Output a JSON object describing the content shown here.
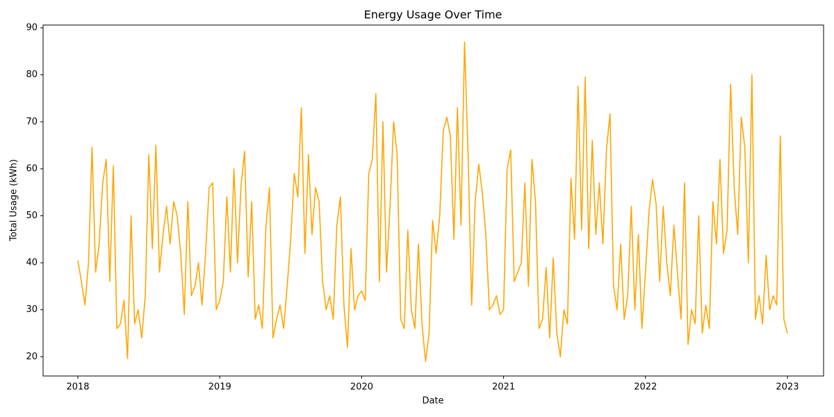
{
  "chart_data": {
    "type": "line",
    "title": "Energy Usage Over Time",
    "x_label": "Date",
    "y_label": "Total Usage (kWh)",
    "x": [
      2018,
      2018.025,
      2018.05,
      2018.075,
      2018.1,
      2018.125,
      2018.15,
      2018.175,
      2018.2,
      2018.225,
      2018.25,
      2018.275,
      2018.3,
      2018.325,
      2018.35,
      2018.375,
      2018.4,
      2018.425,
      2018.45,
      2018.475,
      2018.5,
      2018.525,
      2018.55,
      2018.575,
      2018.6,
      2018.625,
      2018.65,
      2018.675,
      2018.7,
      2018.725,
      2018.75,
      2018.775,
      2018.8,
      2018.825,
      2018.85,
      2018.875,
      2018.9,
      2018.925,
      2018.95,
      2018.975,
      2019,
      2019.025,
      2019.05,
      2019.075,
      2019.1,
      2019.125,
      2019.15,
      2019.175,
      2019.2,
      2019.225,
      2019.25,
      2019.275,
      2019.3,
      2019.325,
      2019.35,
      2019.375,
      2019.4,
      2019.425,
      2019.45,
      2019.475,
      2019.5,
      2019.525,
      2019.55,
      2019.575,
      2019.6,
      2019.625,
      2019.65,
      2019.675,
      2019.7,
      2019.725,
      2019.75,
      2019.775,
      2019.8,
      2019.825,
      2019.85,
      2019.875,
      2019.9,
      2019.925,
      2019.95,
      2019.975,
      2020,
      2020.025,
      2020.05,
      2020.075,
      2020.1,
      2020.125,
      2020.15,
      2020.175,
      2020.2,
      2020.225,
      2020.25,
      2020.275,
      2020.3,
      2020.325,
      2020.35,
      2020.375,
      2020.4,
      2020.425,
      2020.45,
      2020.475,
      2020.5,
      2020.525,
      2020.55,
      2020.575,
      2020.6,
      2020.625,
      2020.65,
      2020.675,
      2020.7,
      2020.725,
      2020.75,
      2020.775,
      2020.8,
      2020.825,
      2020.85,
      2020.875,
      2020.9,
      2020.925,
      2020.95,
      2020.975,
      2021,
      2021.025,
      2021.05,
      2021.075,
      2021.1,
      2021.125,
      2021.15,
      2021.175,
      2021.2,
      2021.225,
      2021.25,
      2021.275,
      2021.3,
      2021.325,
      2021.35,
      2021.375,
      2021.4,
      2021.425,
      2021.45,
      2021.475,
      2021.5,
      2021.525,
      2021.55,
      2021.575,
      2021.6,
      2021.625,
      2021.65,
      2021.675,
      2021.7,
      2021.725,
      2021.75,
      2021.775,
      2021.8,
      2021.825,
      2021.85,
      2021.875,
      2021.9,
      2021.925,
      2021.95,
      2021.975,
      2022,
      2022.025,
      2022.05,
      2022.075,
      2022.1,
      2022.125,
      2022.15,
      2022.175,
      2022.2,
      2022.225,
      2022.25,
      2022.275,
      2022.3,
      2022.325,
      2022.35,
      2022.375,
      2022.4,
      2022.425,
      2022.45,
      2022.475,
      2022.5,
      2022.525,
      2022.55,
      2022.575,
      2022.6,
      2022.625,
      2022.65,
      2022.675,
      2022.7,
      2022.725,
      2022.75,
      2022.775,
      2022.8,
      2022.825,
      2022.85,
      2022.875,
      2022.9,
      2022.925,
      2022.95,
      2022.975,
      2023
    ],
    "series": [
      {
        "color": "#ffa500",
        "values": [
          40.5,
          36,
          31,
          40,
          64.6,
          38,
          44,
          57,
          62,
          36,
          60.6,
          26,
          27,
          32,
          19.6,
          50,
          27,
          30,
          24,
          33,
          63,
          43,
          65,
          38,
          46,
          52,
          44,
          53,
          50,
          42,
          29,
          53,
          33,
          35,
          40,
          31,
          42,
          56,
          57,
          30,
          32,
          36,
          54,
          38,
          60,
          40,
          56.5,
          63.7,
          37,
          53,
          28,
          31,
          26,
          47.6,
          56,
          24,
          28,
          31,
          26,
          35,
          45,
          59,
          54,
          73,
          42,
          63,
          46,
          56,
          53,
          36,
          30,
          33,
          28,
          48,
          54,
          31,
          22,
          43,
          30,
          33,
          34,
          32,
          59,
          62,
          76,
          36,
          70,
          38,
          52,
          70,
          63,
          28,
          26,
          47,
          30,
          26,
          44,
          27,
          19,
          25,
          49,
          42,
          50,
          68,
          71,
          67,
          45,
          73,
          48,
          87,
          63,
          31,
          53,
          61,
          55,
          46,
          30,
          31,
          33,
          29,
          30,
          60,
          64,
          36,
          38,
          40,
          57,
          35,
          62,
          53,
          26,
          28,
          39,
          24,
          41,
          25,
          20,
          30,
          27,
          58,
          45,
          77.6,
          47,
          79.5,
          43,
          66,
          46,
          57,
          44,
          64,
          71.7,
          35,
          30,
          44,
          28,
          33,
          52,
          30,
          46,
          26,
          38,
          51,
          57.7,
          52.5,
          36,
          52,
          40,
          33,
          48,
          38,
          28,
          57,
          22.6,
          30,
          27,
          50,
          25,
          31,
          26,
          53,
          44,
          62,
          42,
          47,
          78,
          56,
          46,
          71,
          64.6,
          40,
          80,
          28,
          33,
          27,
          41.6,
          30,
          33,
          31,
          67,
          28,
          25
        ]
      }
    ],
    "xlim": [
      2017.755,
      2023.255
    ],
    "xticks": [
      2018,
      2019,
      2020,
      2021,
      2022,
      2023
    ],
    "ylim": [
      15.9,
      90.6
    ],
    "yticks": [
      20,
      30,
      40,
      50,
      60,
      70,
      80,
      90
    ],
    "grid": false
  }
}
